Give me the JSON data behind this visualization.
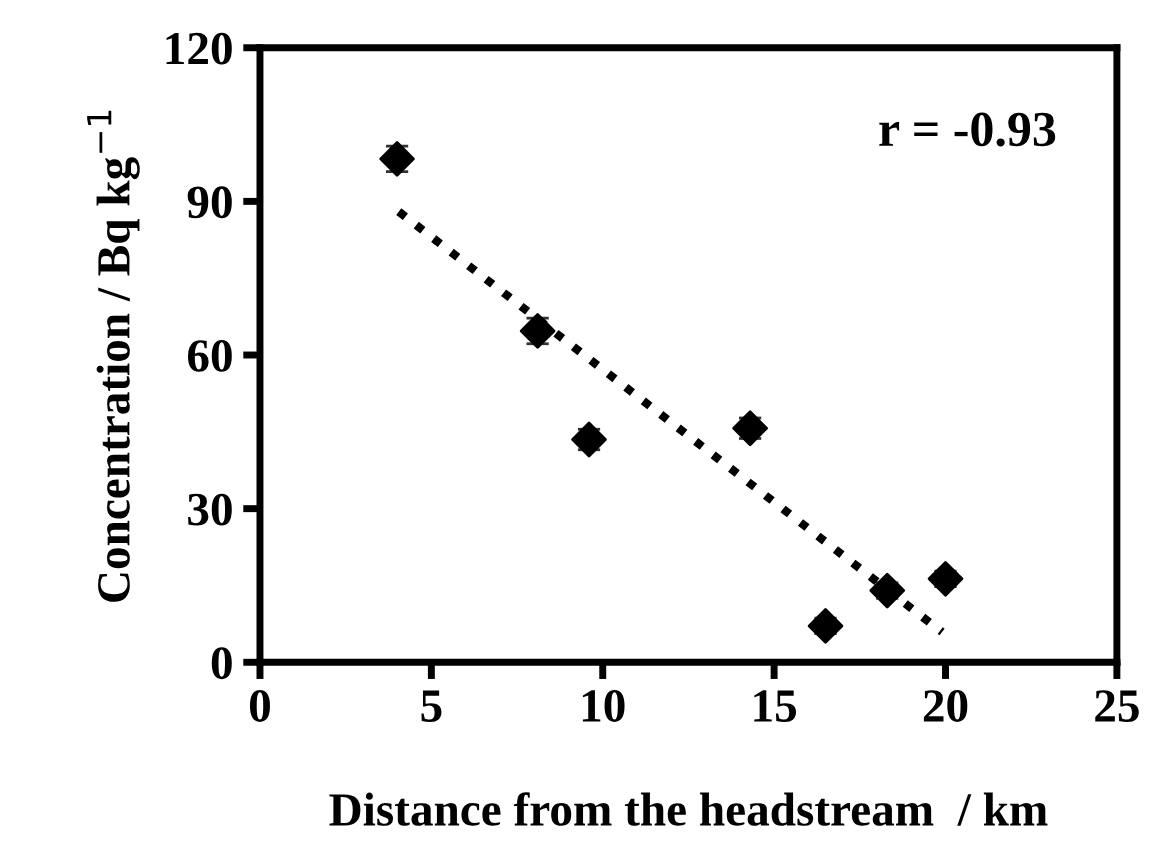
{
  "chart_data": {
    "type": "scatter",
    "xlabel": "Distance from the headstream  / km",
    "ylabel": "Concentration / Bq kg$^{−1}$",
    "annotations": [
      "r = -0.93"
    ],
    "series": [
      {
        "color": "#000000",
        "marker": "diamond",
        "x": [
          4.0,
          8.1,
          9.6,
          14.3,
          16.5,
          18.3,
          20.0
        ],
        "values": [
          98.3,
          64.7,
          43.5,
          45.7,
          7.1,
          14.0,
          16.3
        ],
        "errors": [
          2.5,
          2.5,
          2,
          2,
          1.5,
          1.5,
          1.5
        ]
      },
      {
        "type": "line",
        "color": "#000000",
        "line_style": "dotted",
        "marker": "none",
        "x": [
          4.05,
          19.9
        ],
        "values": [
          88,
          5.9
        ]
      }
    ],
    "xlim": [
      0,
      25
    ],
    "xticks": [
      0,
      5,
      10,
      15,
      20,
      25
    ],
    "ylim": [
      0,
      120
    ],
    "yticks": [
      0,
      30,
      60,
      90,
      120
    ],
    "grid": false,
    "legend": false
  }
}
